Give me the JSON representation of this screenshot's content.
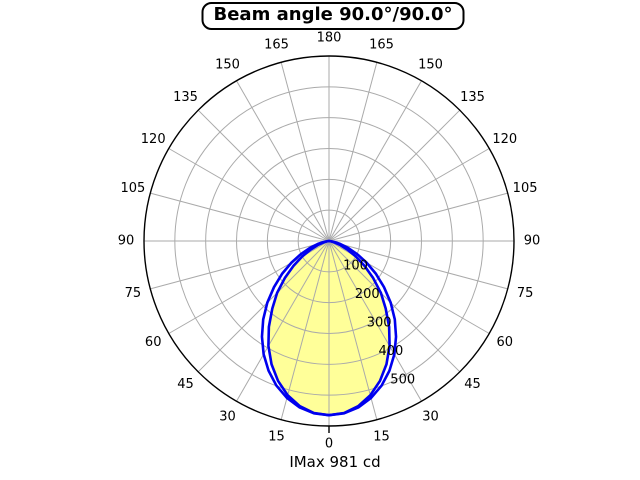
{
  "title": {
    "text": "Beam angle 90.0°/90.0°"
  },
  "footer": {
    "imax": "IMax 981 cd"
  },
  "chart_data": {
    "type": "polar",
    "title": "Beam angle 90.0°/90.0°",
    "annotation": "IMax 981 cd",
    "imax_cd": 981,
    "beam_angle_deg": [
      90.0,
      90.0
    ],
    "angle_ticks_deg": [
      0,
      15,
      30,
      45,
      60,
      75,
      90,
      105,
      120,
      135,
      150,
      165,
      180
    ],
    "radial_ticks": [
      100,
      200,
      300,
      400,
      500
    ],
    "radial_max": 600,
    "grid": true,
    "legend": false,
    "angles_deg": [
      0,
      5,
      10,
      15,
      20,
      25,
      30,
      35,
      40,
      45,
      50,
      55,
      60,
      65,
      70,
      75,
      80,
      85,
      90
    ],
    "series": [
      {
        "name": "curve-outer",
        "values": [
          565,
          561,
          548,
          527,
          499,
          464,
          424,
          379,
          332,
          283,
          233,
          186,
          141,
          101,
          66,
          38,
          17,
          4,
          0
        ]
      },
      {
        "name": "curve-inner",
        "values": [
          565,
          560,
          544,
          518,
          483,
          441,
          393,
          340,
          286,
          238,
          187,
          141,
          100,
          66,
          39,
          19,
          7,
          1,
          0
        ]
      }
    ],
    "colors": {
      "curve": "#0000ee",
      "fill": "#ffff99",
      "grid": "#aaaaaa",
      "outline": "#000000",
      "background": "#ffffff"
    }
  }
}
